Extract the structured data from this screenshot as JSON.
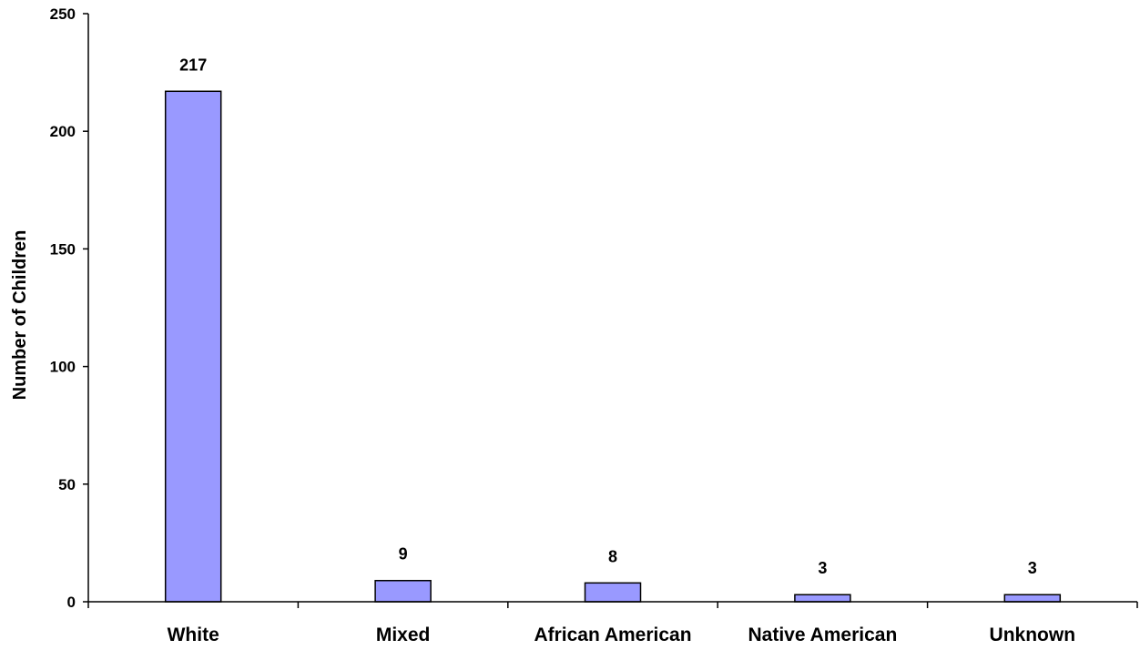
{
  "chart_data": {
    "type": "bar",
    "title": "",
    "xlabel": "",
    "ylabel": "Number of Children",
    "categories": [
      "White",
      "Mixed",
      "African American",
      "Native American",
      "Unknown"
    ],
    "values": [
      217,
      9,
      8,
      3,
      3
    ],
    "data_labels": [
      "217",
      "9",
      "8",
      "3",
      "3"
    ],
    "ylim": [
      0,
      250
    ],
    "yticks": [
      0,
      50,
      100,
      150,
      200,
      250
    ],
    "ytick_labels": [
      "0",
      "50",
      "100",
      "150",
      "200",
      "250"
    ],
    "grid": false,
    "legend": "none",
    "bar_color": "#9999ff",
    "bar_edge_color": "#000000"
  }
}
